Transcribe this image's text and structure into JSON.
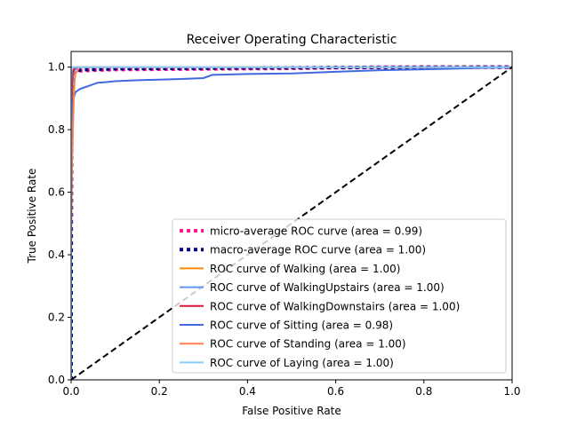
{
  "chart_data": {
    "type": "line",
    "title": "Receiver Operating Characteristic",
    "xlabel": "False Positive Rate",
    "ylabel": "True Positive Rate",
    "xlim": [
      0.0,
      1.0
    ],
    "ylim": [
      0.0,
      1.05
    ],
    "xticks": [
      0.0,
      0.2,
      0.4,
      0.6,
      0.8,
      1.0
    ],
    "yticks": [
      0.0,
      0.2,
      0.4,
      0.6,
      0.8,
      1.0
    ],
    "xtick_labels": [
      "0.0",
      "0.2",
      "0.4",
      "0.6",
      "0.8",
      "1.0"
    ],
    "ytick_labels": [
      "0.0",
      "0.2",
      "0.4",
      "0.6",
      "0.8",
      "1.0"
    ],
    "grid": false,
    "legend_position": "lower-right",
    "series": [
      {
        "name": "micro-average ROC curve (area = 0.99)",
        "color": "#ff1493",
        "style": "dotted",
        "width": 4,
        "x": [
          0.0,
          0.0,
          0.001,
          0.002,
          0.004,
          0.006,
          0.01,
          0.02,
          0.05,
          0.1,
          0.3,
          0.5,
          0.6,
          0.75,
          0.8,
          1.0
        ],
        "y": [
          0.0,
          0.3,
          0.7,
          0.9,
          0.96,
          0.98,
          0.985,
          0.988,
          0.99,
          0.992,
          0.994,
          0.996,
          0.998,
          1.0,
          1.0,
          1.0
        ]
      },
      {
        "name": "macro-average ROC curve (area = 1.00)",
        "color": "#000080",
        "style": "dotted",
        "width": 4,
        "x": [
          0.0,
          0.0,
          0.001,
          0.003,
          0.006,
          0.01,
          0.03,
          0.1,
          0.3,
          0.5,
          0.6,
          1.0
        ],
        "y": [
          0.0,
          0.5,
          0.88,
          0.95,
          0.98,
          0.99,
          0.992,
          0.995,
          0.997,
          0.998,
          0.999,
          1.0
        ]
      },
      {
        "name": "ROC curve of Walking (area = 1.00)",
        "color": "#ff8c00",
        "style": "solid",
        "width": 2,
        "x": [
          0.0,
          0.0,
          0.002,
          0.004,
          0.008,
          0.012,
          0.02,
          0.1,
          1.0
        ],
        "y": [
          0.0,
          0.6,
          0.9,
          0.97,
          0.99,
          0.995,
          1.0,
          1.0,
          1.0
        ]
      },
      {
        "name": "ROC curve of WalkingUpstairs (area = 1.00)",
        "color": "#6495ed",
        "style": "solid",
        "width": 2,
        "x": [
          0.0,
          0.0,
          0.002,
          0.005,
          0.008,
          0.012,
          0.02,
          0.1,
          1.0
        ],
        "y": [
          0.0,
          0.7,
          0.93,
          0.98,
          0.99,
          0.995,
          1.0,
          1.0,
          1.0
        ]
      },
      {
        "name": "ROC curve of WalkingDownstairs (area = 1.00)",
        "color": "#dc143c",
        "style": "solid",
        "width": 2,
        "x": [
          0.0,
          0.0,
          0.002,
          0.004,
          0.007,
          0.01,
          0.02,
          1.0
        ],
        "y": [
          0.0,
          0.8,
          0.95,
          0.985,
          0.995,
          1.0,
          1.0,
          1.0
        ]
      },
      {
        "name": "ROC curve of Sitting (area = 0.98)",
        "color": "#4169e1",
        "style": "solid",
        "width": 2,
        "x": [
          0.0,
          0.0,
          0.002,
          0.005,
          0.01,
          0.02,
          0.03,
          0.04,
          0.06,
          0.08,
          0.1,
          0.15,
          0.2,
          0.25,
          0.3,
          0.32,
          0.4,
          0.5,
          0.6,
          0.7,
          0.8,
          0.9,
          1.0
        ],
        "y": [
          0.0,
          0.5,
          0.85,
          0.9,
          0.92,
          0.93,
          0.935,
          0.94,
          0.95,
          0.952,
          0.955,
          0.958,
          0.96,
          0.962,
          0.965,
          0.975,
          0.978,
          0.98,
          0.985,
          0.99,
          0.993,
          0.996,
          1.0
        ]
      },
      {
        "name": "ROC curve of Standing (area = 1.00)",
        "color": "#ff7f50",
        "style": "solid",
        "width": 2,
        "x": [
          0.0,
          0.0,
          0.002,
          0.004,
          0.006,
          0.008,
          0.01,
          0.015,
          0.02,
          0.1,
          1.0
        ],
        "y": [
          0.0,
          0.4,
          0.68,
          0.8,
          0.9,
          0.96,
          0.98,
          0.99,
          1.0,
          1.0,
          1.0
        ]
      },
      {
        "name": "ROC curve of Laying (area = 1.00)",
        "color": "#87cefa",
        "style": "solid",
        "width": 2,
        "x": [
          0.0,
          0.0,
          0.001,
          0.002,
          0.005,
          1.0
        ],
        "y": [
          0.0,
          0.95,
          0.99,
          1.0,
          1.0,
          1.0
        ]
      }
    ],
    "reference_line": {
      "color": "#000000",
      "style": "dashed",
      "x": [
        0.0,
        1.0
      ],
      "y": [
        0.0,
        1.0
      ]
    }
  }
}
